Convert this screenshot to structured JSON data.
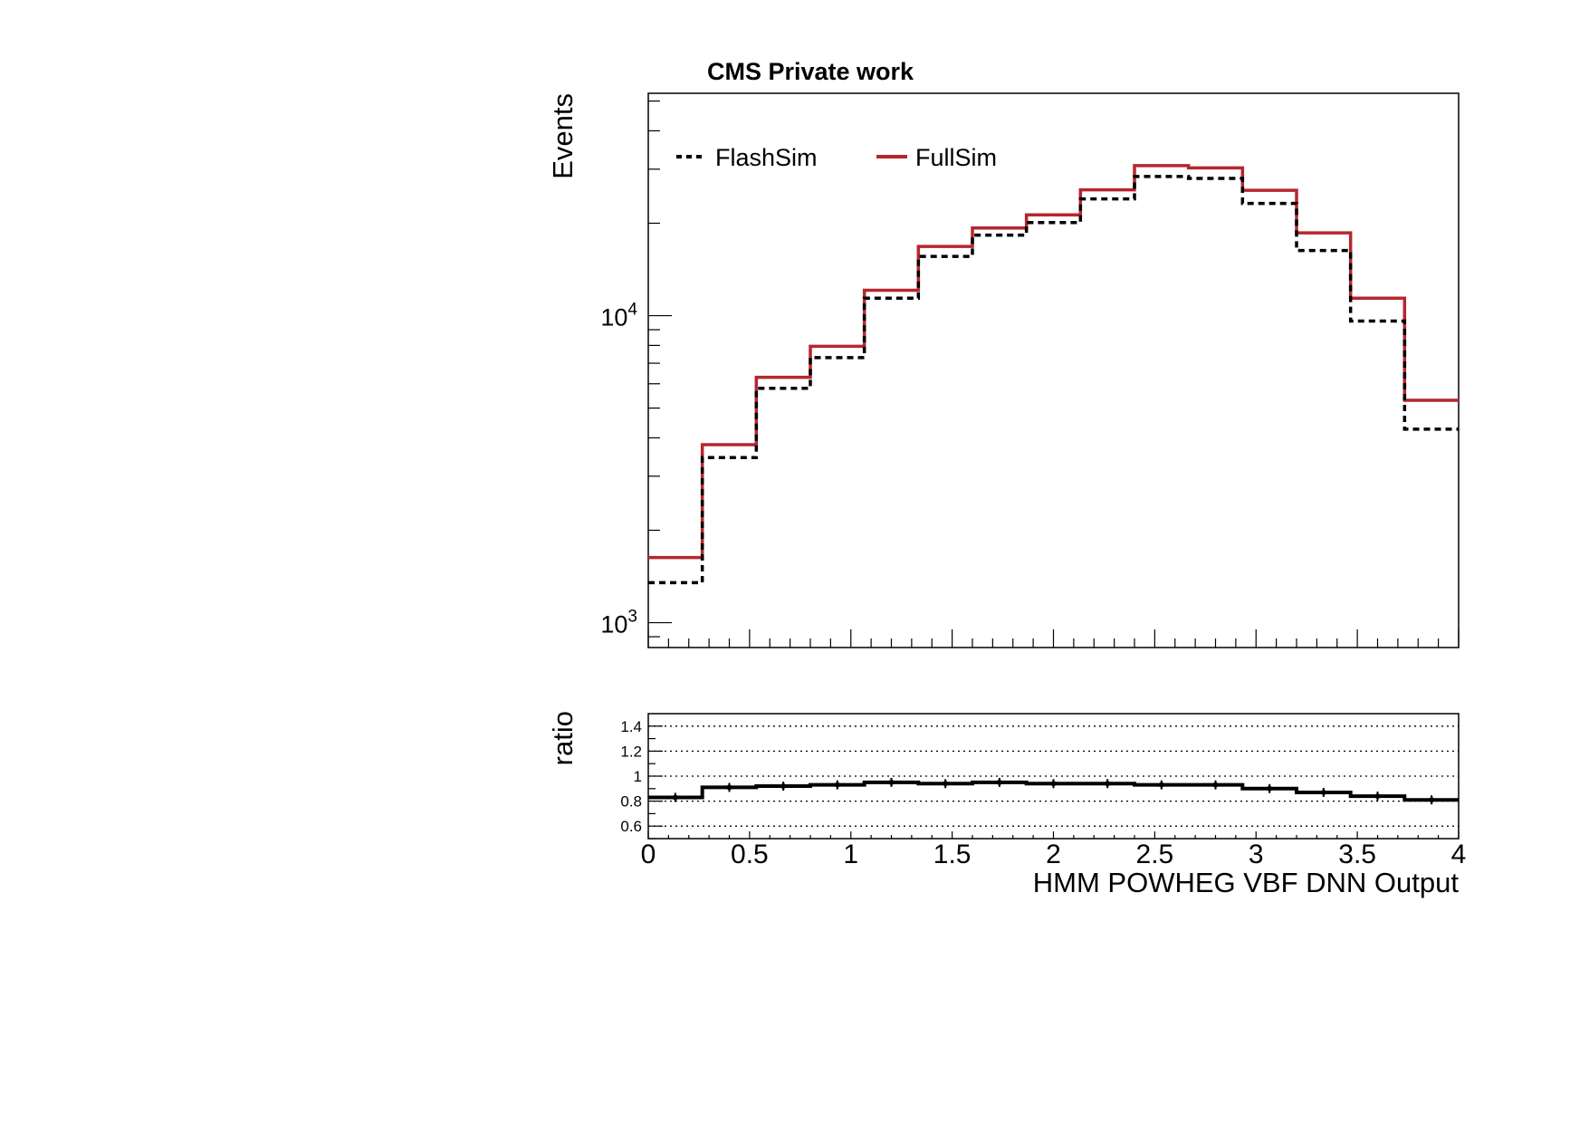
{
  "title": "CMS Private work",
  "colors": {
    "flashsim": "#000000",
    "fullsim": "#b7262e",
    "frame": "#000000"
  },
  "chart_data": [
    {
      "type": "step-histogram",
      "panel": "main",
      "xlabel": "",
      "ylabel": "Events",
      "yscale": "log",
      "xlim": [
        0,
        4
      ],
      "ylim": [
        830,
        53000
      ],
      "y_tick_labels": [
        {
          "value": 1000,
          "base": "10",
          "exp": "3"
        },
        {
          "value": 10000,
          "base": "10",
          "exp": "4"
        }
      ],
      "legend": {
        "placement": "top-left",
        "entries": [
          "FlashSim",
          "FullSim"
        ]
      },
      "bin_edges": [
        0,
        0.2667,
        0.5333,
        0.8,
        1.0667,
        1.3333,
        1.6,
        1.8667,
        2.1333,
        2.4,
        2.6667,
        2.9333,
        3.2,
        3.4667,
        3.7333,
        4.0
      ],
      "series": [
        {
          "name": "FlashSim",
          "style": "dashed",
          "values": [
            1350,
            3450,
            5800,
            7300,
            11400,
            15600,
            18300,
            20100,
            24000,
            28400,
            28000,
            23200,
            16300,
            9600,
            4270
          ]
        },
        {
          "name": "FullSim",
          "style": "solid",
          "values": [
            1630,
            3800,
            6300,
            7950,
            12100,
            16800,
            19300,
            21300,
            25700,
            30800,
            30300,
            25600,
            18600,
            11400,
            5300
          ]
        }
      ]
    },
    {
      "type": "step-histogram",
      "panel": "ratio",
      "xlabel": "HMM POWHEG VBF DNN Output",
      "ylabel": "ratio",
      "xlim": [
        0,
        4
      ],
      "ylim": [
        0.5,
        1.5
      ],
      "x_ticks": [
        "0",
        "0.5",
        "1",
        "1.5",
        "2",
        "2.5",
        "3",
        "3.5",
        "4"
      ],
      "y_ticks": [
        "0.6",
        "0.8",
        "1",
        "1.2",
        "1.4"
      ],
      "grid": "horizontal dotted",
      "bin_edges": [
        0,
        0.2667,
        0.5333,
        0.8,
        1.0667,
        1.3333,
        1.6,
        1.8667,
        2.1333,
        2.4,
        2.6667,
        2.9333,
        3.2,
        3.4667,
        3.7333,
        4.0
      ],
      "series": [
        {
          "name": "",
          "values": [
            0.83,
            0.91,
            0.92,
            0.93,
            0.95,
            0.94,
            0.95,
            0.94,
            0.94,
            0.93,
            0.93,
            0.9,
            0.87,
            0.84,
            0.81
          ]
        }
      ]
    }
  ]
}
